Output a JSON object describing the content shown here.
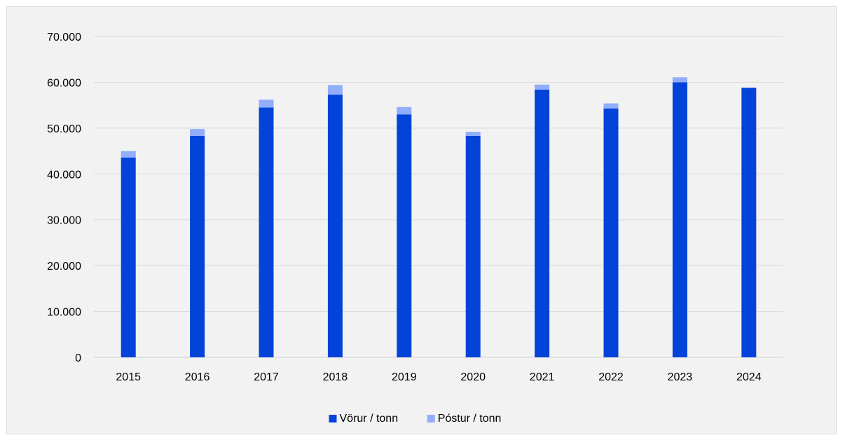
{
  "chart_data": {
    "type": "bar",
    "stacked": true,
    "categories": [
      "2015",
      "2016",
      "2017",
      "2018",
      "2019",
      "2020",
      "2021",
      "2022",
      "2023",
      "2024"
    ],
    "series": [
      {
        "name": "Vörur / tonn",
        "color": "#0343d9",
        "values": [
          43600,
          48300,
          54500,
          57300,
          53000,
          48300,
          58400,
          54300,
          60000,
          58800
        ]
      },
      {
        "name": "Póstur / tonn",
        "color": "#92aefb",
        "values": [
          1400,
          1500,
          1700,
          2100,
          1600,
          900,
          1100,
          1100,
          1100,
          0
        ]
      }
    ],
    "ylim": [
      0,
      70000
    ],
    "yticks": [
      0,
      10000,
      20000,
      30000,
      40000,
      50000,
      60000,
      70000
    ],
    "ytick_labels": [
      "0",
      "10.000",
      "20.000",
      "30.000",
      "40.000",
      "50.000",
      "60.000",
      "70.000"
    ],
    "grid": true,
    "legend_position": "bottom",
    "title": "",
    "xlabel": "",
    "ylabel": ""
  }
}
